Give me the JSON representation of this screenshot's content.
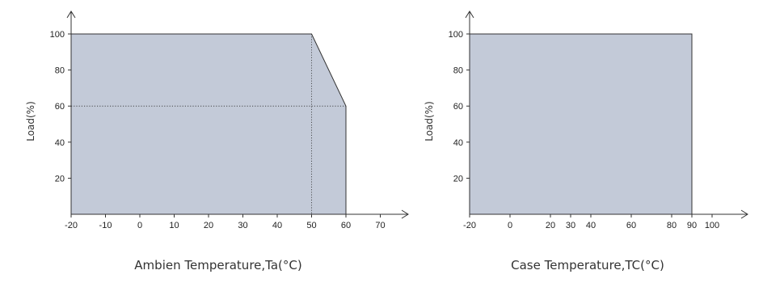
{
  "chart_data": [
    {
      "type": "area",
      "xlabel": "Ambien Temperature,Ta(°C)",
      "ylabel": "Load(%)",
      "xlim": [
        -20,
        75
      ],
      "ylim": [
        0,
        100
      ],
      "x_ticks": [
        -20,
        -10,
        0,
        10,
        20,
        30,
        40,
        50,
        60,
        70
      ],
      "y_ticks": [
        20,
        40,
        60,
        80,
        100
      ],
      "fill_color": "#c3cad8",
      "points": [
        {
          "x": -20,
          "y": 100
        },
        {
          "x": 50,
          "y": 100
        },
        {
          "x": 60,
          "y": 60
        },
        {
          "x": 60,
          "y": 0
        }
      ],
      "guides": [
        {
          "from": {
            "x": -20,
            "y": 60
          },
          "to": {
            "x": 60,
            "y": 60
          }
        },
        {
          "from": {
            "x": 50,
            "y": 100
          },
          "to": {
            "x": 50,
            "y": 0
          }
        }
      ]
    },
    {
      "type": "area",
      "xlabel": "Case Temperature,TC(°C)",
      "ylabel": "Load(%)",
      "xlim": [
        -20,
        110
      ],
      "ylim": [
        0,
        100
      ],
      "x_ticks": [
        -20,
        0,
        20,
        30,
        40,
        60,
        80,
        90,
        100
      ],
      "y_ticks": [
        20,
        40,
        60,
        80,
        100
      ],
      "fill_color": "#c3cad8",
      "points": [
        {
          "x": -20,
          "y": 100
        },
        {
          "x": 90,
          "y": 100
        },
        {
          "x": 90,
          "y": 0
        }
      ],
      "guides": []
    }
  ]
}
